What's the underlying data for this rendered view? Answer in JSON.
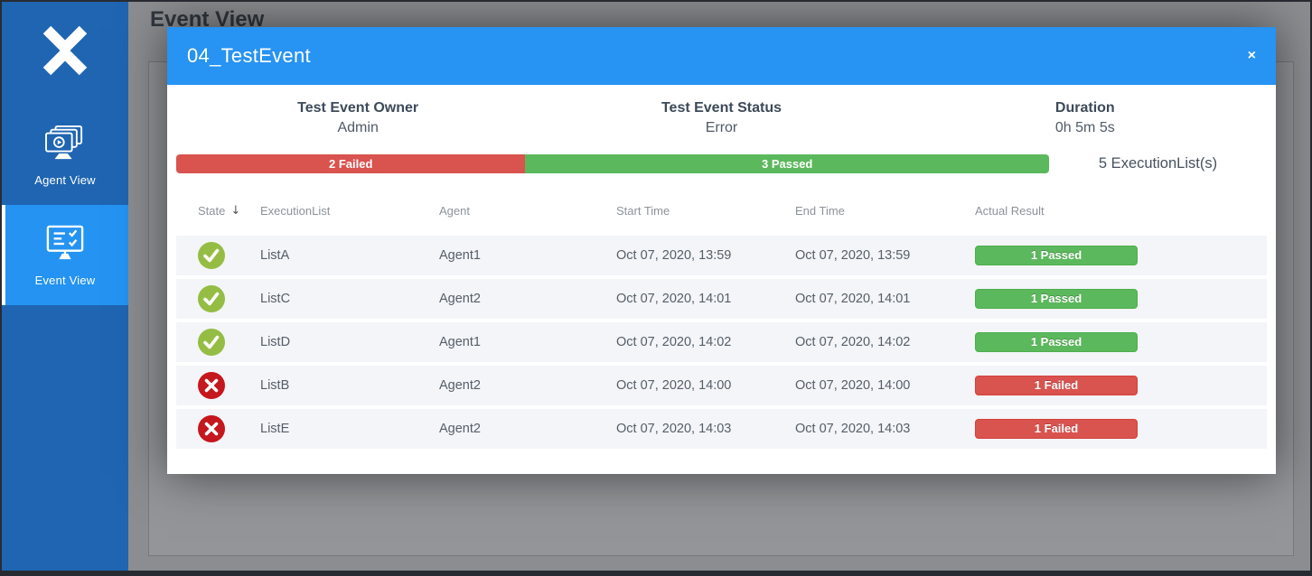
{
  "sidebar": {
    "items": [
      {
        "label": "Agent View",
        "active": false
      },
      {
        "label": "Event View",
        "active": true
      }
    ]
  },
  "page": {
    "title": "Event View"
  },
  "modal": {
    "title": "04_TestEvent",
    "close_label": "×",
    "info": [
      {
        "label": "Test Event Owner",
        "value": "Admin"
      },
      {
        "label": "Test Event Status",
        "value": "Error"
      },
      {
        "label": "Duration",
        "value": "0h 5m 5s"
      }
    ],
    "progress": {
      "failed_label": "2 Failed",
      "failed_pct": 40,
      "passed_label": "3 Passed",
      "passed_pct": 60,
      "count_label": "5 ExecutionList(s)"
    },
    "table": {
      "sort_icon": "↓",
      "columns": [
        "State",
        "ExecutionList",
        "Agent",
        "Start Time",
        "End Time",
        "Actual Result"
      ],
      "rows": [
        {
          "state": "passed",
          "list": "ListA",
          "agent": "Agent1",
          "start": "Oct 07, 2020, 13:59",
          "end": "Oct 07, 2020, 13:59",
          "result": "1 Passed"
        },
        {
          "state": "passed",
          "list": "ListC",
          "agent": "Agent2",
          "start": "Oct 07, 2020, 14:01",
          "end": "Oct 07, 2020, 14:01",
          "result": "1 Passed"
        },
        {
          "state": "passed",
          "list": "ListD",
          "agent": "Agent1",
          "start": "Oct 07, 2020, 14:02",
          "end": "Oct 07, 2020, 14:02",
          "result": "1 Passed"
        },
        {
          "state": "failed",
          "list": "ListB",
          "agent": "Agent2",
          "start": "Oct 07, 2020, 14:00",
          "end": "Oct 07, 2020, 14:00",
          "result": "1 Failed"
        },
        {
          "state": "failed",
          "list": "ListE",
          "agent": "Agent2",
          "start": "Oct 07, 2020, 14:03",
          "end": "Oct 07, 2020, 14:03",
          "result": "1 Failed"
        }
      ]
    }
  },
  "colors": {
    "sidebar": "#1f65b2",
    "active_item": "#2493f2",
    "modal_header": "#2793f2",
    "passed": "#5cb85c",
    "failed": "#d9534f",
    "state_passed_icon": "#95bd44",
    "state_failed_icon": "#c5171e"
  }
}
